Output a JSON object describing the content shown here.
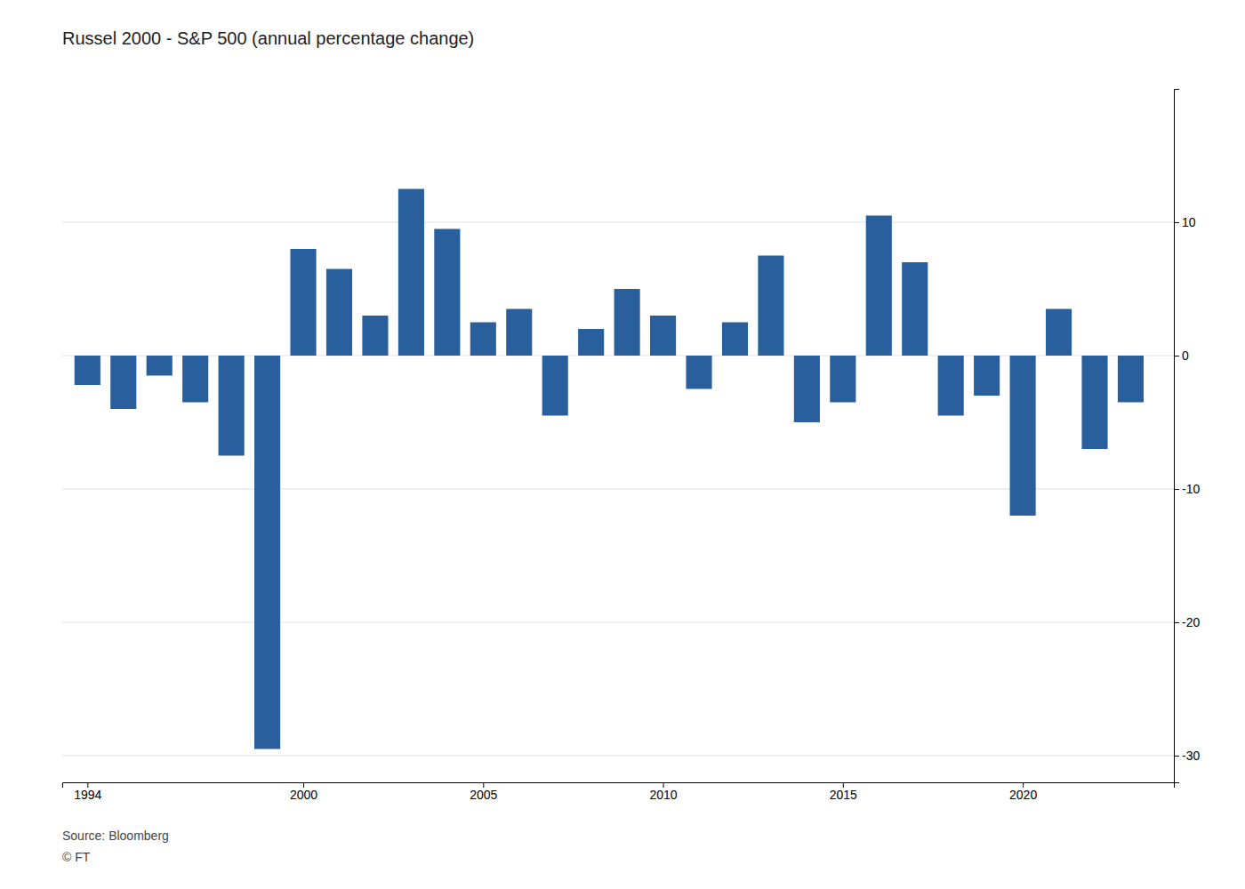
{
  "chart_data": {
    "type": "bar",
    "title": "Russel 2000 - S&P 500 (annual percentage change)",
    "annotations": [
      "Source: Bloomberg",
      "© FT"
    ],
    "x": [
      1994,
      1995,
      1996,
      1997,
      1998,
      1999,
      2000,
      2001,
      2002,
      2003,
      2004,
      2005,
      2006,
      2007,
      2008,
      2009,
      2010,
      2011,
      2012,
      2013,
      2014,
      2015,
      2016,
      2017,
      2018,
      2019,
      2020,
      2021,
      2022,
      2023
    ],
    "values": [
      -2.2,
      -4.0,
      -1.5,
      -3.5,
      -7.5,
      -29.5,
      8.0,
      6.5,
      3.0,
      12.5,
      9.5,
      2.5,
      3.5,
      -4.5,
      2.0,
      5.0,
      3.0,
      -2.5,
      2.5,
      7.5,
      -5.0,
      -3.5,
      10.5,
      7.0,
      -4.5,
      -3.0,
      -12.0,
      3.5,
      -7.0,
      -3.5
    ],
    "color": "#2a5f9e",
    "xlim": [
      1993.3,
      2024.2
    ],
    "xticks": [
      1994,
      2000,
      2005,
      2010,
      2015,
      2020
    ],
    "ylim": [
      -32,
      20
    ],
    "yticks": [
      -30,
      -20,
      -10,
      0,
      10
    ],
    "grid": true
  }
}
